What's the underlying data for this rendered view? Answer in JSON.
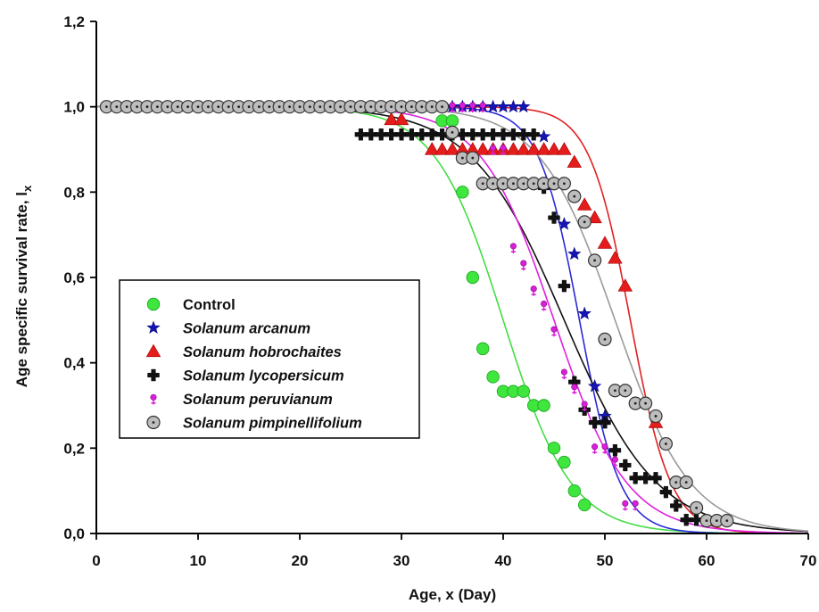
{
  "chart_data": {
    "type": "scatter",
    "title": "",
    "xlabel": "Age, x (Day)",
    "ylabel_main": "Age specific survival rate, l",
    "ylabel_sub": "x",
    "xlim": [
      0,
      70
    ],
    "ylim": [
      0,
      1.2
    ],
    "xticks": [
      "0",
      "10",
      "20",
      "30",
      "40",
      "50",
      "60",
      "70"
    ],
    "yticks": [
      "0,0",
      "0,2",
      "0,4",
      "0,6",
      "0,8",
      "1,0",
      "1,2"
    ],
    "grid": false,
    "legend_position": "center-left",
    "series": [
      {
        "name": "Control",
        "italic": false,
        "marker": "circle",
        "color": "#3ee63e",
        "edge": "#1aa51a",
        "points": [
          [
            1,
            1
          ],
          [
            2,
            1
          ],
          [
            3,
            1
          ],
          [
            4,
            1
          ],
          [
            5,
            1
          ],
          [
            6,
            1
          ],
          [
            7,
            1
          ],
          [
            8,
            1
          ],
          [
            9,
            1
          ],
          [
            10,
            1
          ],
          [
            11,
            1
          ],
          [
            12,
            1
          ],
          [
            13,
            1
          ],
          [
            14,
            1
          ],
          [
            15,
            1
          ],
          [
            16,
            1
          ],
          [
            17,
            1
          ],
          [
            18,
            1
          ],
          [
            19,
            1
          ],
          [
            20,
            1
          ],
          [
            21,
            1
          ],
          [
            22,
            1
          ],
          [
            23,
            1
          ],
          [
            24,
            1
          ],
          [
            25,
            1
          ],
          [
            26,
            1
          ],
          [
            27,
            1
          ],
          [
            28,
            1
          ],
          [
            29,
            1
          ],
          [
            30,
            1
          ],
          [
            31,
            1
          ],
          [
            32,
            1
          ],
          [
            33,
            1
          ],
          [
            34,
            0.967
          ],
          [
            35,
            0.967
          ],
          [
            36,
            0.8
          ],
          [
            37,
            0.6
          ],
          [
            38,
            0.433
          ],
          [
            39,
            0.367
          ],
          [
            40,
            0.333
          ],
          [
            41,
            0.333
          ],
          [
            42,
            0.333
          ],
          [
            43,
            0.3
          ],
          [
            44,
            0.3
          ],
          [
            45,
            0.2
          ],
          [
            46,
            0.167
          ],
          [
            47,
            0.1
          ],
          [
            48,
            0.067
          ]
        ],
        "curve": {
          "x50": 40.0,
          "k": 0.3
        },
        "curve_color": "#44dd44"
      },
      {
        "name": "Solanum arcanum",
        "italic": true,
        "marker": "star",
        "color": "#1515b5",
        "edge": "#0b0b80",
        "points": [
          [
            34,
            1
          ],
          [
            35,
            1
          ],
          [
            36,
            1
          ],
          [
            37,
            1
          ],
          [
            38,
            1
          ],
          [
            39,
            1
          ],
          [
            40,
            1
          ],
          [
            41,
            1
          ],
          [
            42,
            1
          ],
          [
            44,
            0.93
          ],
          [
            46,
            0.725
          ],
          [
            47,
            0.655
          ],
          [
            48,
            0.515
          ],
          [
            49,
            0.345
          ],
          [
            50,
            0.275
          ]
        ],
        "curve": {
          "x50": 47.5,
          "k": 0.5
        },
        "curve_color": "#2a2ad8"
      },
      {
        "name": "Solanum hobrochaites",
        "italic": true,
        "marker": "triangle",
        "color": "#e51c1c",
        "edge": "#a00000",
        "points": [
          [
            29,
            0.97
          ],
          [
            30,
            0.97
          ],
          [
            33,
            0.9
          ],
          [
            34,
            0.9
          ],
          [
            35,
            0.9
          ],
          [
            36,
            0.9
          ],
          [
            37,
            0.9
          ],
          [
            38,
            0.9
          ],
          [
            39,
            0.9
          ],
          [
            40,
            0.9
          ],
          [
            41,
            0.9
          ],
          [
            42,
            0.9
          ],
          [
            43,
            0.9
          ],
          [
            44,
            0.9
          ],
          [
            45,
            0.9
          ],
          [
            46,
            0.9
          ],
          [
            47,
            0.87
          ],
          [
            48,
            0.77
          ],
          [
            49,
            0.74
          ],
          [
            50,
            0.68
          ],
          [
            51,
            0.645
          ],
          [
            52,
            0.58
          ],
          [
            55,
            0.26
          ]
        ],
        "curve": {
          "x50": 52.5,
          "k": 0.5
        },
        "curve_color": "#e02020"
      },
      {
        "name": "Solanum lycopersicum",
        "italic": true,
        "marker": "plus",
        "color": "#111111",
        "edge": "#000000",
        "points": [
          [
            26,
            0.935
          ],
          [
            27,
            0.935
          ],
          [
            28,
            0.935
          ],
          [
            29,
            0.935
          ],
          [
            30,
            0.935
          ],
          [
            31,
            0.935
          ],
          [
            32,
            0.935
          ],
          [
            33,
            0.935
          ],
          [
            34,
            0.935
          ],
          [
            35,
            0.935
          ],
          [
            36,
            0.935
          ],
          [
            37,
            0.935
          ],
          [
            38,
            0.935
          ],
          [
            39,
            0.935
          ],
          [
            40,
            0.935
          ],
          [
            41,
            0.935
          ],
          [
            42,
            0.935
          ],
          [
            43,
            0.935
          ],
          [
            44,
            0.81
          ],
          [
            45,
            0.74
          ],
          [
            46,
            0.58
          ],
          [
            47,
            0.355
          ],
          [
            48,
            0.29
          ],
          [
            49,
            0.26
          ],
          [
            50,
            0.26
          ],
          [
            51,
            0.195
          ],
          [
            52,
            0.16
          ],
          [
            53,
            0.13
          ],
          [
            54,
            0.13
          ],
          [
            55,
            0.13
          ],
          [
            56,
            0.097
          ],
          [
            57,
            0.065
          ],
          [
            58,
            0.032
          ],
          [
            59,
            0.032
          ]
        ],
        "curve": {
          "x50": 46.0,
          "k": 0.22
        },
        "curve_color": "#111111"
      },
      {
        "name": "Solanum peruvianum",
        "italic": true,
        "marker": "female",
        "color": "#d820d8",
        "edge": "#8a008a",
        "points": [
          [
            35,
            1
          ],
          [
            36,
            1
          ],
          [
            37,
            1
          ],
          [
            38,
            1
          ],
          [
            39,
            0.9
          ],
          [
            40,
            0.9
          ],
          [
            41,
            0.67
          ],
          [
            42,
            0.63
          ],
          [
            43,
            0.57
          ],
          [
            44,
            0.535
          ],
          [
            45,
            0.475
          ],
          [
            46,
            0.375
          ],
          [
            47,
            0.34
          ],
          [
            48,
            0.3
          ],
          [
            49,
            0.2
          ],
          [
            50,
            0.2
          ],
          [
            51,
            0.17
          ],
          [
            52,
            0.067
          ],
          [
            53,
            0.067
          ]
        ],
        "curve": {
          "x50": 45.0,
          "k": 0.28
        },
        "curve_color": "#e020e0"
      },
      {
        "name": "Solanum pimpinellifolium",
        "italic": true,
        "marker": "dotcircle",
        "color": "#bdbdbd",
        "edge": "#333333",
        "points": [
          [
            1,
            1
          ],
          [
            2,
            1
          ],
          [
            3,
            1
          ],
          [
            4,
            1
          ],
          [
            5,
            1
          ],
          [
            6,
            1
          ],
          [
            7,
            1
          ],
          [
            8,
            1
          ],
          [
            9,
            1
          ],
          [
            10,
            1
          ],
          [
            11,
            1
          ],
          [
            12,
            1
          ],
          [
            13,
            1
          ],
          [
            14,
            1
          ],
          [
            15,
            1
          ],
          [
            16,
            1
          ],
          [
            17,
            1
          ],
          [
            18,
            1
          ],
          [
            19,
            1
          ],
          [
            20,
            1
          ],
          [
            21,
            1
          ],
          [
            22,
            1
          ],
          [
            23,
            1
          ],
          [
            24,
            1
          ],
          [
            25,
            1
          ],
          [
            26,
            1
          ],
          [
            27,
            1
          ],
          [
            28,
            1
          ],
          [
            29,
            1
          ],
          [
            30,
            1
          ],
          [
            31,
            1
          ],
          [
            32,
            1
          ],
          [
            33,
            1
          ],
          [
            34,
            1
          ],
          [
            35,
            0.94
          ],
          [
            36,
            0.88
          ],
          [
            37,
            0.88
          ],
          [
            38,
            0.82
          ],
          [
            39,
            0.82
          ],
          [
            40,
            0.82
          ],
          [
            41,
            0.82
          ],
          [
            42,
            0.82
          ],
          [
            43,
            0.82
          ],
          [
            44,
            0.82
          ],
          [
            45,
            0.82
          ],
          [
            46,
            0.82
          ],
          [
            47,
            0.79
          ],
          [
            48,
            0.73
          ],
          [
            49,
            0.64
          ],
          [
            50,
            0.455
          ],
          [
            51,
            0.335
          ],
          [
            52,
            0.335
          ],
          [
            53,
            0.305
          ],
          [
            54,
            0.305
          ],
          [
            55,
            0.275
          ],
          [
            56,
            0.21
          ],
          [
            57,
            0.12
          ],
          [
            58,
            0.12
          ],
          [
            59,
            0.06
          ],
          [
            60,
            0.03
          ],
          [
            61,
            0.03
          ],
          [
            62,
            0.03
          ]
        ],
        "curve": {
          "x50": 51.0,
          "k": 0.27
        },
        "curve_color": "#9a9a9a"
      }
    ]
  }
}
